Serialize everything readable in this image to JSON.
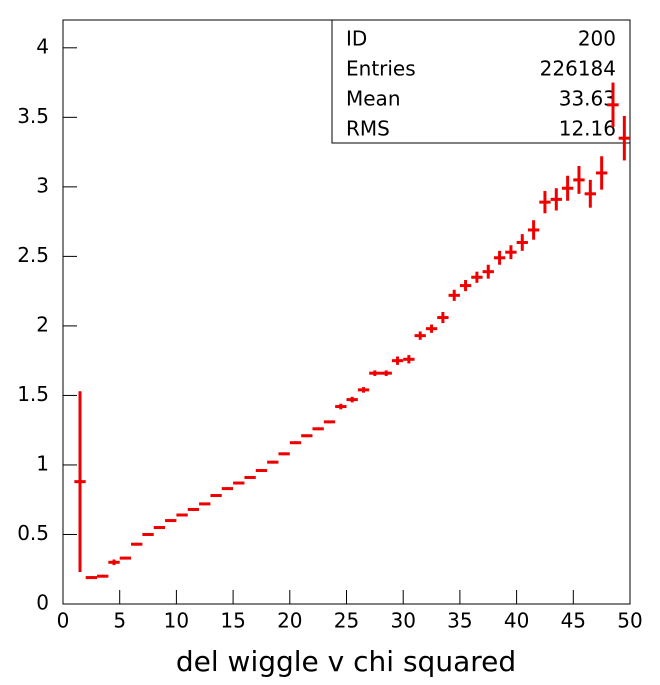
{
  "chart_data": {
    "type": "profile",
    "xlabel": "del wiggle v chi squared",
    "stats": {
      "labels": [
        "ID",
        "Entries",
        "Mean",
        "RMS"
      ],
      "values": [
        "200",
        "226184",
        "33.63",
        "12.16"
      ]
    },
    "color": "#ee0000",
    "bin_width": 1,
    "x": [
      1.5,
      2.5,
      3.5,
      4.5,
      5.5,
      6.5,
      7.5,
      8.5,
      9.5,
      10.5,
      11.5,
      12.5,
      13.5,
      14.5,
      15.5,
      16.5,
      17.5,
      18.5,
      19.5,
      20.5,
      21.5,
      22.5,
      23.5,
      24.5,
      25.5,
      26.5,
      27.5,
      28.5,
      29.5,
      30.5,
      31.5,
      32.5,
      33.5,
      34.5,
      35.5,
      36.5,
      37.5,
      38.5,
      39.5,
      40.5,
      41.5,
      42.5,
      43.5,
      44.5,
      45.5,
      46.5,
      47.5,
      48.5,
      49.5
    ],
    "values": [
      0.88,
      0.19,
      0.2,
      0.3,
      0.33,
      0.43,
      0.5,
      0.55,
      0.6,
      0.64,
      0.68,
      0.72,
      0.78,
      0.83,
      0.87,
      0.91,
      0.96,
      1.02,
      1.08,
      1.16,
      1.21,
      1.26,
      1.31,
      1.42,
      1.47,
      1.54,
      1.66,
      1.66,
      1.75,
      1.76,
      1.93,
      1.98,
      2.06,
      2.22,
      2.29,
      2.35,
      2.39,
      2.49,
      2.53,
      2.6,
      2.69,
      2.89,
      2.91,
      2.99,
      3.05,
      2.95,
      3.1,
      3.59,
      3.35
    ],
    "errors": [
      0.65,
      0.01,
      0.01,
      0.02,
      0.01,
      0.01,
      0.01,
      0.01,
      0.01,
      0.01,
      0.01,
      0.01,
      0.01,
      0.01,
      0.01,
      0.01,
      0.01,
      0.01,
      0.01,
      0.01,
      0.01,
      0.01,
      0.01,
      0.02,
      0.02,
      0.02,
      0.02,
      0.02,
      0.03,
      0.03,
      0.03,
      0.03,
      0.04,
      0.04,
      0.04,
      0.04,
      0.05,
      0.05,
      0.05,
      0.06,
      0.07,
      0.08,
      0.08,
      0.09,
      0.1,
      0.1,
      0.12,
      0.16,
      0.16
    ],
    "xlim": [
      0,
      50
    ],
    "xticks": [
      0,
      5,
      10,
      15,
      20,
      25,
      30,
      35,
      40,
      45,
      50
    ],
    "ylim": [
      0,
      4.2
    ],
    "yticks": [
      0,
      0.5,
      1,
      1.5,
      2,
      2.5,
      3,
      3.5,
      4
    ]
  }
}
